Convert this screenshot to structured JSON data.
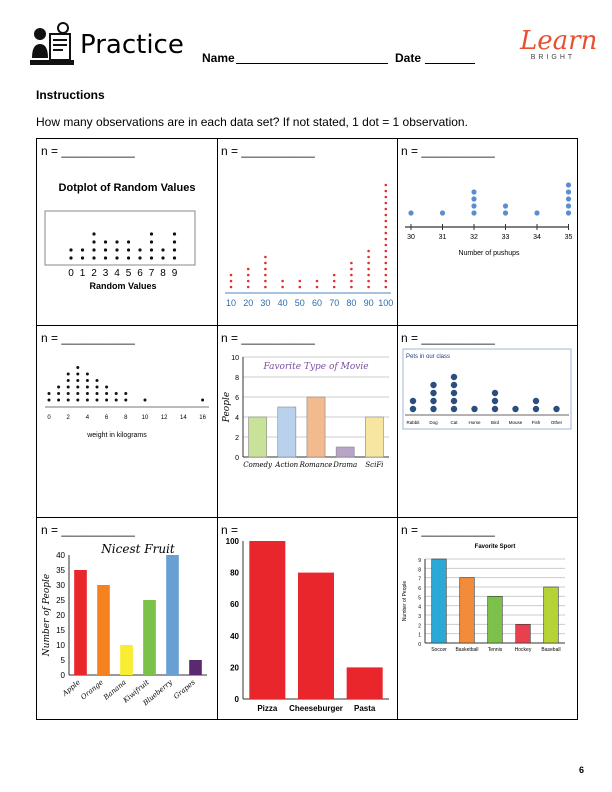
{
  "header": {
    "title": "Practice",
    "name_label": "Name",
    "date_label": "Date"
  },
  "logo": {
    "text": "Learn",
    "sub": "BRIGHT",
    "color": "#e8502f"
  },
  "instructions": {
    "heading": "Instructions",
    "text": "How many observations are in each data set? If not stated, 1 dot = 1 observation."
  },
  "n_label": "n = ___________",
  "n_label_short": "n =",
  "page_number": "6",
  "chart_data": [
    {
      "type": "scatter",
      "title": "Dotplot of Random Values",
      "xlabel": "Random Values",
      "categories": [
        "0",
        "1",
        "2",
        "3",
        "4",
        "5",
        "6",
        "7",
        "8",
        "9"
      ],
      "values": [
        2,
        2,
        4,
        3,
        3,
        3,
        2,
        4,
        2,
        4
      ]
    },
    {
      "type": "scatter",
      "title": "",
      "xlabel": "",
      "categories": [
        "10",
        "20",
        "30",
        "40",
        "50",
        "60",
        "70",
        "80",
        "90",
        "100"
      ],
      "values": [
        3,
        4,
        6,
        2,
        2,
        2,
        3,
        5,
        7,
        18
      ]
    },
    {
      "type": "scatter",
      "title": "",
      "xlabel": "Number of pushups",
      "categories": [
        "30",
        "31",
        "32",
        "33",
        "34",
        "35"
      ],
      "values": [
        1,
        1,
        4,
        2,
        1,
        5
      ]
    },
    {
      "type": "scatter",
      "title": "",
      "xlabel": "weight in kilograms",
      "x": [
        0,
        1,
        2,
        3,
        4,
        5,
        6,
        7,
        8,
        10,
        16
      ],
      "values": [
        2,
        3,
        5,
        6,
        5,
        4,
        3,
        2,
        2,
        1,
        1
      ],
      "ticks": [
        "0",
        "2",
        "4",
        "6",
        "8",
        "10",
        "12",
        "14",
        "16"
      ]
    },
    {
      "type": "bar",
      "title": "Favorite Type of Movie",
      "ylabel": "People",
      "categories": [
        "Comedy",
        "Action",
        "Romance",
        "Drama",
        "SciFi"
      ],
      "values": [
        4,
        5,
        6,
        1,
        4
      ],
      "ylim": [
        0,
        10
      ],
      "yticks": [
        "0",
        "2",
        "4",
        "6",
        "8",
        "10"
      ],
      "colors": [
        "#c9e29a",
        "#b9d1ec",
        "#f3b98f",
        "#b8a4c9",
        "#f7e6a1"
      ]
    },
    {
      "type": "scatter",
      "title": "Pets in our class",
      "categories": [
        "Rabbit",
        "Dog",
        "Cat",
        "Horse",
        "Bird",
        "Mouse",
        "Fish",
        "Other"
      ],
      "values": [
        2,
        4,
        5,
        1,
        3,
        1,
        2,
        1
      ]
    },
    {
      "type": "bar",
      "title": "Nicest Fruit",
      "ylabel": "Number of People",
      "categories": [
        "Apple",
        "Orange",
        "Banana",
        "Kiwifruit",
        "Blueberry",
        "Grapes"
      ],
      "values": [
        35,
        30,
        10,
        25,
        40,
        5
      ],
      "ylim": [
        0,
        40
      ],
      "yticks": [
        "0",
        "5",
        "10",
        "15",
        "20",
        "25",
        "30",
        "35",
        "40"
      ],
      "colors": [
        "#e8262c",
        "#f5821f",
        "#f9ed32",
        "#7cc24a",
        "#6a9fd4",
        "#5b2a6e"
      ]
    },
    {
      "type": "bar",
      "title": "",
      "categories": [
        "Pizza",
        "Cheeseburger",
        "Pasta"
      ],
      "values": [
        100,
        80,
        20
      ],
      "ylim": [
        0,
        100
      ],
      "yticks": [
        "0",
        "20",
        "40",
        "60",
        "80",
        "100"
      ],
      "color": "#e8262c"
    },
    {
      "type": "bar",
      "title": "Favorite Sport",
      "ylabel": "Number of People",
      "categories": [
        "Soccer",
        "Basketball",
        "Tennis",
        "Hockey",
        "Baseball"
      ],
      "values": [
        9,
        7,
        5,
        2,
        6
      ],
      "ylim": [
        0,
        9
      ],
      "yticks": [
        "0",
        "1",
        "2",
        "3",
        "4",
        "5",
        "6",
        "7",
        "8",
        "9"
      ],
      "colors": [
        "#2aa9d6",
        "#f28b3a",
        "#7cc24a",
        "#e8404e",
        "#b5d334"
      ]
    }
  ]
}
